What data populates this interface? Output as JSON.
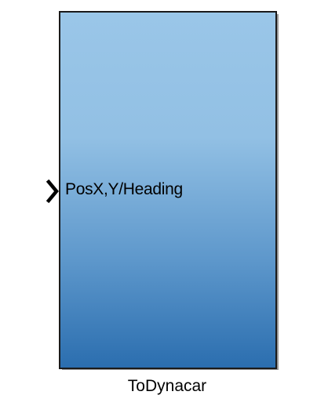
{
  "block": {
    "name": "ToDynacar",
    "input_port_label": "PosX,Y/Heading",
    "fill_top_color": "#9ac6e8",
    "fill_bottom_color": "#2b6eaf",
    "border_color": "#1a1a1a"
  },
  "icons": {
    "input_port": "chevron-right-icon"
  }
}
